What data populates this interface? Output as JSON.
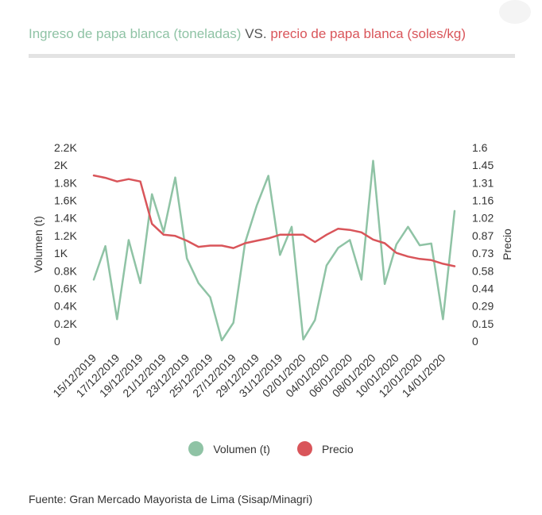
{
  "title": {
    "volume_part": "Ingreso de papa blanca (toneladas)",
    "vs": "VS.",
    "price_part": "precio de papa blanca (soles/kg)"
  },
  "colors": {
    "volume": "#8fc3a5",
    "price": "#d9555a",
    "rule": "#e3e3e3"
  },
  "legend": {
    "volume_label": "Volumen (t)",
    "price_label": "Precio"
  },
  "source": "Fuente: Gran Mercado Mayorista de Lima (Sisap/Minagri)",
  "chart_data": {
    "type": "line",
    "title": "",
    "ylabel_left": "Volumen (t)",
    "ylabel_right": "Precio",
    "left_ticks": [
      "0",
      "0.2K",
      "0.4K",
      "0.6K",
      "0.8K",
      "1K",
      "1.2K",
      "1.4K",
      "1.6K",
      "1.8K",
      "2K",
      "2.2K"
    ],
    "right_ticks": [
      "0",
      "0.15",
      "0.29",
      "0.44",
      "0.58",
      "0.73",
      "0.87",
      "1.02",
      "1.16",
      "1.31",
      "1.45",
      "1.6"
    ],
    "ylim_left": [
      0,
      2200
    ],
    "ylim_right": [
      0,
      1.6
    ],
    "x_tick_labels": [
      "15/12/2019",
      "17/12/2019",
      "19/12/2019",
      "21/12/2019",
      "23/12/2019",
      "25/12/2019",
      "27/12/2019",
      "29/12/2019",
      "31/12/2019",
      "02/01/2020",
      "04/01/2020",
      "06/01/2020",
      "08/01/2020",
      "10/01/2020",
      "12/01/2020",
      "14/01/2020"
    ],
    "x": [
      "15/12/2019",
      "16/12/2019",
      "17/12/2019",
      "18/12/2019",
      "19/12/2019",
      "20/12/2019",
      "21/12/2019",
      "22/12/2019",
      "23/12/2019",
      "24/12/2019",
      "25/12/2019",
      "26/12/2019",
      "27/12/2019",
      "28/12/2019",
      "29/12/2019",
      "30/12/2019",
      "31/12/2019",
      "01/01/2020",
      "02/01/2020",
      "03/01/2020",
      "04/01/2020",
      "05/01/2020",
      "06/01/2020",
      "07/01/2020",
      "08/01/2020",
      "09/01/2020",
      "10/01/2020",
      "11/01/2020",
      "12/01/2020",
      "13/01/2020",
      "14/01/2020",
      "15/01/2020"
    ],
    "series": [
      {
        "name": "Volumen (t)",
        "axis": "left",
        "values": [
          700,
          1080,
          250,
          1150,
          660,
          1670,
          1240,
          1860,
          940,
          660,
          500,
          10,
          210,
          1120,
          1540,
          1880,
          980,
          1300,
          20,
          240,
          860,
          1060,
          1150,
          700,
          2050,
          650,
          1100,
          1300,
          1090,
          1110,
          250,
          1480
        ]
      },
      {
        "name": "Precio",
        "axis": "right",
        "values": [
          1.37,
          1.35,
          1.32,
          1.34,
          1.32,
          0.97,
          0.88,
          0.87,
          0.83,
          0.78,
          0.79,
          0.79,
          0.77,
          0.81,
          0.83,
          0.85,
          0.88,
          0.88,
          0.88,
          0.82,
          0.88,
          0.93,
          0.92,
          0.9,
          0.84,
          0.81,
          0.73,
          0.7,
          0.68,
          0.67,
          0.64,
          0.62
        ]
      }
    ]
  }
}
